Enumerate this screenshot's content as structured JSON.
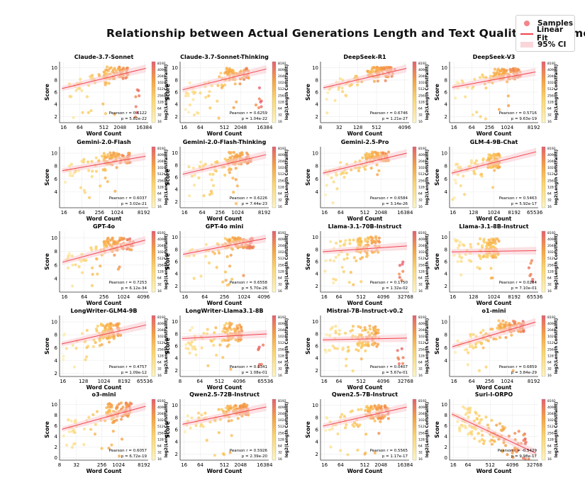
{
  "title": "Relationship between Actual Generations Length and Text Quality Assessment",
  "legend": {
    "samples": "Samples",
    "fit": "Linear Fit",
    "ci": "95% CI"
  },
  "colors": {
    "low": "#fce99a",
    "mid": "#f7a341",
    "high": "#e8606e",
    "fit": "#f0424e",
    "ci": "#f9cbd0"
  },
  "chart_data": [
    {
      "type": "scatter",
      "title": "Claude-3.7-Sonnet",
      "xlabel": "Word Count",
      "ylabel": "Score",
      "xticks": [
        "16",
        "64",
        "512",
        "2048",
        "16384"
      ],
      "xlog": [
        3.5,
        14.5
      ],
      "ylim": [
        1,
        11
      ],
      "yticks": [
        "2",
        "4",
        "6",
        "8",
        "10"
      ],
      "fit": [
        6.5,
        10
      ],
      "pearson": "Pearson r = 0.6122",
      "pval": "p = 5.82e-22",
      "colorbar": {
        "label": "log2(Length Constraint)",
        "ticks": [
          "8192",
          "4096",
          "2048",
          "1024",
          "512",
          "256",
          "128",
          "64",
          "32",
          "16"
        ]
      },
      "cluster": {
        "cx": 10.5,
        "cy": 9.2,
        "spread": 3,
        "scatter": 1.0,
        "tail": true
      }
    },
    {
      "type": "scatter",
      "title": "Claude-3.7-Sonnet-Thinking",
      "xlabel": "Word Count",
      "ylabel": "Score",
      "xticks": [
        "16",
        "64",
        "512",
        "2048",
        "16384"
      ],
      "xlog": [
        3.5,
        14.5
      ],
      "ylim": [
        1,
        11
      ],
      "yticks": [
        "2",
        "4",
        "6",
        "8",
        "10"
      ],
      "fit": [
        6.3,
        9.9
      ],
      "pearson": "Pearson r = 0.6259",
      "pval": "p = 1.04e-22",
      "colorbar": {
        "label": "log2(Length Constraint)",
        "ticks": [
          "8192",
          "4096",
          "2048",
          "1024",
          "512",
          "256",
          "128",
          "64",
          "32",
          "16"
        ]
      },
      "cluster": {
        "cx": 10.5,
        "cy": 9.0,
        "spread": 3,
        "scatter": 1.0,
        "tail": true
      }
    },
    {
      "type": "scatter",
      "title": "DeepSeek-R1",
      "xlabel": "Word Count",
      "ylabel": "Score",
      "xticks": [
        "8",
        "32",
        "128",
        "512",
        "4096"
      ],
      "xlog": [
        3,
        12.5
      ],
      "ylim": [
        1,
        11
      ],
      "yticks": [
        "2",
        "4",
        "6",
        "8",
        "10"
      ],
      "fit": [
        6.6,
        10
      ],
      "pearson": "Pearson r = 0.6746",
      "pval": "p = 1.21e-27",
      "colorbar": {
        "label": "log2(Length Constraint)",
        "ticks": [
          "8192",
          "4096",
          "2048",
          "1024",
          "512",
          "256",
          "128",
          "64",
          "32",
          "16"
        ]
      },
      "cluster": {
        "cx": 9.5,
        "cy": 9.3,
        "spread": 3,
        "scatter": 0.8,
        "tail": false
      }
    },
    {
      "type": "scatter",
      "title": "DeepSeek-V3",
      "xlabel": "Word Count",
      "ylabel": "Score",
      "xticks": [
        "16",
        "64",
        "256",
        "1024",
        "8192"
      ],
      "xlog": [
        3.5,
        13.5
      ],
      "ylim": [
        1,
        11
      ],
      "yticks": [
        "2",
        "4",
        "6",
        "8",
        "10"
      ],
      "fit": [
        6.7,
        9.4
      ],
      "pearson": "Pearson r = 0.5716",
      "pval": "p = 9.63e-19",
      "colorbar": {
        "label": "log2(Length Constraint)",
        "ticks": [
          "8192",
          "4096",
          "2048",
          "1024",
          "512",
          "256",
          "128",
          "64",
          "32",
          "16"
        ]
      },
      "cluster": {
        "cx": 10,
        "cy": 9.0,
        "spread": 3,
        "scatter": 0.9,
        "tail": false
      }
    },
    {
      "type": "scatter",
      "title": "Gemini-2.0-Flash",
      "xlabel": "Word Count",
      "ylabel": "Score",
      "xticks": [
        "16",
        "64",
        "256",
        "1024",
        "8192"
      ],
      "xlog": [
        3.5,
        13.5
      ],
      "ylim": [
        1.5,
        11
      ],
      "yticks": [
        "4",
        "6",
        "8",
        "10"
      ],
      "fit": [
        7.2,
        9.6
      ],
      "pearson": "Pearson r = 0.6037",
      "pval": "p = 3.02e-21",
      "colorbar": {
        "label": "log2(Length Constraint)",
        "ticks": [
          "8192",
          "4096",
          "2048",
          "1024",
          "512",
          "256",
          "128",
          "64",
          "32",
          "16"
        ]
      },
      "cluster": {
        "cx": 10,
        "cy": 9.2,
        "spread": 3,
        "scatter": 0.9,
        "tail": false
      }
    },
    {
      "type": "scatter",
      "title": "Gemini-2.0-Flash-Thinking",
      "xlabel": "Word Count",
      "ylabel": "Score",
      "xticks": [
        "16",
        "64",
        "256",
        "1024",
        "8192"
      ],
      "xlog": [
        3.5,
        13.5
      ],
      "ylim": [
        1,
        11
      ],
      "yticks": [
        "2",
        "4",
        "6",
        "8",
        "10"
      ],
      "fit": [
        6.4,
        9.8
      ],
      "pearson": "Pearson r = 0.6226",
      "pval": "p = 7.44e-23",
      "colorbar": {
        "label": "log2(Length Constraint)",
        "ticks": [
          "8192",
          "4096",
          "2048",
          "1024",
          "512",
          "256",
          "128",
          "64",
          "32",
          "16"
        ]
      },
      "cluster": {
        "cx": 10,
        "cy": 9.1,
        "spread": 3,
        "scatter": 1.0,
        "tail": false
      }
    },
    {
      "type": "scatter",
      "title": "Gemini-2.5-Pro",
      "xlabel": "Word Count",
      "ylabel": "Score",
      "xticks": [
        "16",
        "64",
        "512",
        "2048",
        "16384"
      ],
      "xlog": [
        3.5,
        14.5
      ],
      "ylim": [
        1.5,
        11
      ],
      "yticks": [
        "4",
        "6",
        "8",
        "10"
      ],
      "fit": [
        6.8,
        10.1
      ],
      "pearson": "Pearson r = 0.6584",
      "pval": "p = 3.14e-26",
      "colorbar": {
        "label": "log2(Length Constraint)",
        "ticks": [
          "8192",
          "4096",
          "2048",
          "1024",
          "512",
          "256",
          "128",
          "64",
          "32",
          "16"
        ]
      },
      "cluster": {
        "cx": 10.5,
        "cy": 9.4,
        "spread": 3,
        "scatter": 0.8,
        "tail": false
      }
    },
    {
      "type": "scatter",
      "title": "GLM-4-9B-Chat",
      "xlabel": "Word Count",
      "ylabel": "Score",
      "xticks": [
        "16",
        "128",
        "1024",
        "8192",
        "65536"
      ],
      "xlog": [
        3.5,
        16.5
      ],
      "ylim": [
        1.5,
        11
      ],
      "yticks": [
        "4",
        "6",
        "8",
        "10"
      ],
      "fit": [
        6.8,
        10.3
      ],
      "pearson": "Pearson r = 0.5463",
      "pval": "p = 5.92e-17",
      "colorbar": {
        "label": "log2(Length Constraint)",
        "ticks": [
          "8192",
          "4096",
          "2048",
          "1024",
          "512",
          "256",
          "128",
          "64",
          "32",
          "16"
        ]
      },
      "cluster": {
        "cx": 10,
        "cy": 8.8,
        "spread": 1.8,
        "scatter": 1.1,
        "tail": false
      }
    },
    {
      "type": "scatter",
      "title": "GPT-4o",
      "xlabel": "Word Count",
      "ylabel": "Score",
      "xticks": [
        "16",
        "64",
        "256",
        "1024",
        "4096"
      ],
      "xlog": [
        3.5,
        12.5
      ],
      "ylim": [
        2,
        11
      ],
      "yticks": [
        "4",
        "6",
        "8",
        "10"
      ],
      "fit": [
        6.3,
        9.8
      ],
      "pearson": "Pearson r = 0.7253",
      "pval": "p = 6.12e-34",
      "colorbar": {
        "label": "log2(Length Constraint)",
        "ticks": [
          "8192",
          "4096",
          "2048",
          "1024",
          "512",
          "256",
          "128",
          "64",
          "32",
          "16"
        ]
      },
      "cluster": {
        "cx": 9.5,
        "cy": 9.1,
        "spread": 3,
        "scatter": 0.9,
        "tail": false
      }
    },
    {
      "type": "scatter",
      "title": "GPT-4o mini",
      "xlabel": "Word Count",
      "ylabel": "Score",
      "xticks": [
        "16",
        "64",
        "256",
        "1024",
        "4096"
      ],
      "xlog": [
        3.5,
        12.5
      ],
      "ylim": [
        1,
        11
      ],
      "yticks": [
        "2",
        "4",
        "6",
        "8",
        "10"
      ],
      "fit": [
        7.1,
        9.9
      ],
      "pearson": "Pearson r = 0.6558",
      "pval": "p = 5.70e-26",
      "colorbar": {
        "label": "log2(Length Constraint)",
        "ticks": [
          "8192",
          "4096",
          "2048",
          "1024",
          "512",
          "256",
          "128",
          "64",
          "32",
          "16"
        ]
      },
      "cluster": {
        "cx": 9.5,
        "cy": 9.1,
        "spread": 3,
        "scatter": 0.9,
        "tail": false
      }
    },
    {
      "type": "scatter",
      "title": "Llama-3.1-70B-Instruct",
      "xlabel": "Word Count",
      "ylabel": "Score",
      "xticks": [
        "16",
        "64",
        "512",
        "4096",
        "32768"
      ],
      "xlog": [
        3.5,
        15.5
      ],
      "ylim": [
        1,
        11
      ],
      "yticks": [
        "2",
        "4",
        "6",
        "8",
        "10"
      ],
      "fit": [
        7.6,
        8.6
      ],
      "pearson": "Pearson r = 0.1750",
      "pval": "p = 1.32e-02",
      "colorbar": {
        "label": "log2(Length Constraint)",
        "ticks": [
          "8192",
          "4096",
          "2048",
          "1024",
          "512",
          "256",
          "128",
          "64",
          "32",
          "16"
        ]
      },
      "cluster": {
        "cx": 10,
        "cy": 8.8,
        "spread": 3,
        "scatter": 1.3,
        "tail": true
      }
    },
    {
      "type": "scatter",
      "title": "Llama-3.1-8B-Instruct",
      "xlabel": "Word Count",
      "ylabel": "Score",
      "xticks": [
        "16",
        "128",
        "1024",
        "8192",
        "65536"
      ],
      "xlog": [
        3.5,
        16.5
      ],
      "ylim": [
        1,
        11
      ],
      "yticks": [
        "2",
        "4",
        "6",
        "8",
        "10"
      ],
      "fit": [
        7.6,
        7.8
      ],
      "pearson": "Pearson r = 0.0284",
      "pval": "p = 7.10e-01",
      "colorbar": {
        "label": "log2(Length Constraint)",
        "ticks": [
          "8192",
          "4096",
          "2048",
          "1024",
          "512",
          "256",
          "128",
          "64",
          "32",
          "16"
        ]
      },
      "cluster": {
        "cx": 9.5,
        "cy": 8.3,
        "spread": 2.5,
        "scatter": 1.6,
        "tail": true
      }
    },
    {
      "type": "scatter",
      "title": "LongWriter-GLM4-9B",
      "xlabel": "Word Count",
      "ylabel": "Score",
      "xticks": [
        "16",
        "128",
        "1024",
        "8192",
        "65536"
      ],
      "xlog": [
        3.5,
        16.5
      ],
      "ylim": [
        1.5,
        11
      ],
      "yticks": [
        "2",
        "4",
        "6",
        "8",
        "10"
      ],
      "fit": [
        6.5,
        9.6
      ],
      "pearson": "Pearson r = 0.4757",
      "pval": "p = 1.09e-12",
      "colorbar": {
        "label": "log2(Length Constraint)",
        "ticks": [
          "8192",
          "4096",
          "2048",
          "1024",
          "512",
          "256",
          "128",
          "64",
          "32",
          "16"
        ]
      },
      "cluster": {
        "cx": 11,
        "cy": 8.6,
        "spread": 3,
        "scatter": 1.2,
        "tail": false
      }
    },
    {
      "type": "scatter",
      "title": "LongWriter-Llama3.1-8B",
      "xlabel": "Word Count",
      "ylabel": "Score",
      "xticks": [
        "8",
        "64",
        "512",
        "4096",
        "65536"
      ],
      "xlog": [
        3,
        16.5
      ],
      "ylim": [
        1,
        11
      ],
      "yticks": [
        "2",
        "4",
        "6",
        "8",
        "10"
      ],
      "fit": [
        7.2,
        8.0
      ],
      "pearson": "Pearson r = 0.1341",
      "pval": "p = 1.08e-01",
      "colorbar": {
        "label": "log2(Length Constraint)",
        "ticks": [
          "8192",
          "4096",
          "2048",
          "1024",
          "512",
          "256",
          "128",
          "64",
          "32",
          "16"
        ]
      },
      "cluster": {
        "cx": 11,
        "cy": 8.3,
        "spread": 3,
        "scatter": 1.5,
        "tail": true
      }
    },
    {
      "type": "scatter",
      "title": "Mistral-7B-Instruct-v0.2",
      "xlabel": "Word Count",
      "ylabel": "Score",
      "xticks": [
        "16",
        "64",
        "512",
        "4096",
        "32768"
      ],
      "xlog": [
        3.5,
        15.5
      ],
      "ylim": [
        1,
        11
      ],
      "yticks": [
        "2",
        "4",
        "6",
        "8",
        "10"
      ],
      "fit": [
        7.0,
        7.3
      ],
      "pearson": "Pearson r = 0.0407",
      "pval": "p = 5.67e-01",
      "colorbar": {
        "label": "log2(Length Constraint)",
        "ticks": [
          "8192",
          "4096",
          "2048",
          "1024",
          "512",
          "256",
          "128",
          "64",
          "32",
          "16"
        ]
      },
      "cluster": {
        "cx": 10,
        "cy": 7.6,
        "spread": 3,
        "scatter": 1.7,
        "tail": true
      }
    },
    {
      "type": "scatter",
      "title": "o1-mini",
      "xlabel": "Word Count",
      "ylabel": "Score",
      "xticks": [
        "16",
        "64",
        "256",
        "1024",
        "8192"
      ],
      "xlog": [
        3.5,
        13.5
      ],
      "ylim": [
        1.5,
        11
      ],
      "yticks": [
        "4",
        "6",
        "8",
        "10"
      ],
      "fit": [
        6.0,
        10.1
      ],
      "pearson": "Pearson r = 0.6859",
      "pval": "p = 3.84e-29",
      "colorbar": {
        "label": "log2(Length Constraint)",
        "ticks": [
          "8192",
          "4096",
          "2048",
          "1024",
          "512",
          "256",
          "128",
          "64",
          "32",
          "16"
        ]
      },
      "cluster": {
        "cx": 10.5,
        "cy": 9.3,
        "spread": 3,
        "scatter": 0.9,
        "tail": false
      }
    },
    {
      "type": "scatter",
      "title": "o3-mini",
      "xlabel": "Word Count",
      "ylabel": "Score",
      "xticks": [
        "8",
        "32",
        "256",
        "1024",
        "8192"
      ],
      "xlog": [
        3,
        13.5
      ],
      "ylim": [
        -0.5,
        11
      ],
      "yticks": [
        "0",
        "2",
        "4",
        "6",
        "8",
        "10"
      ],
      "fit": [
        5.2,
        9.8
      ],
      "pearson": "Pearson r = 0.6057",
      "pval": "p = 6.72e-19",
      "colorbar": {
        "label": "log2(Length Constraint)",
        "ticks": [
          "8192",
          "4096",
          "2048",
          "1024",
          "512",
          "256",
          "128",
          "64",
          "32",
          "16"
        ]
      },
      "cluster": {
        "cx": 10,
        "cy": 9.0,
        "spread": 3,
        "scatter": 1.3,
        "tail": false
      }
    },
    {
      "type": "scatter",
      "title": "Qwen2.5-72B-Instruct",
      "xlabel": "Word Count",
      "ylabel": "Score",
      "xticks": [
        "16",
        "64",
        "512",
        "2048",
        "16384"
      ],
      "xlog": [
        3.5,
        14.5
      ],
      "ylim": [
        1,
        11
      ],
      "yticks": [
        "2",
        "4",
        "6",
        "8",
        "10"
      ],
      "fit": [
        6.8,
        9.8
      ],
      "pearson": "Pearson r = 0.5926",
      "pval": "p = 2.39e-20",
      "colorbar": {
        "label": "log2(Length Constraint)",
        "ticks": [
          "8192",
          "4096",
          "2048",
          "1024",
          "512",
          "256",
          "128",
          "64",
          "32",
          "16"
        ]
      },
      "cluster": {
        "cx": 10.5,
        "cy": 9.2,
        "spread": 3,
        "scatter": 1.0,
        "tail": false
      }
    },
    {
      "type": "scatter",
      "title": "Qwen2.5-7B-Instruct",
      "xlabel": "Word Count",
      "ylabel": "Score",
      "xticks": [
        "16",
        "64",
        "512",
        "2048",
        "16384"
      ],
      "xlog": [
        3.5,
        14.5
      ],
      "ylim": [
        1,
        11
      ],
      "yticks": [
        "2",
        "4",
        "6",
        "8",
        "10"
      ],
      "fit": [
        6.5,
        9.8
      ],
      "pearson": "Pearson r = 0.5565",
      "pval": "p = 1.17e-17",
      "colorbar": {
        "label": "log2(Length Constraint)",
        "ticks": [
          "8192",
          "4096",
          "2048",
          "1024",
          "512",
          "256",
          "128",
          "64",
          "32",
          "16"
        ]
      },
      "cluster": {
        "cx": 10.5,
        "cy": 8.9,
        "spread": 3,
        "scatter": 1.1,
        "tail": false
      }
    },
    {
      "type": "scatter",
      "title": "Suri-I-ORPO",
      "xlabel": "Word Count",
      "ylabel": "Score",
      "xticks": [
        "16",
        "64",
        "512",
        "4096",
        "32768"
      ],
      "xlog": [
        3.5,
        15.5
      ],
      "ylim": [
        -0.5,
        11
      ],
      "yticks": [
        "0",
        "2",
        "4",
        "6",
        "8",
        "10"
      ],
      "fit": [
        8.4,
        0.6
      ],
      "pearson": "Pearson r = -0.5429",
      "pval": "p = 9.98e-17",
      "colorbar": {
        "label": "log2(Length Constraint)",
        "ticks": [
          "8192",
          "4096",
          "2048",
          "1024",
          "512",
          "256",
          "128",
          "64",
          "32",
          "16"
        ]
      },
      "cluster": {
        "cx": 10,
        "cy": 4.5,
        "spread": 3,
        "scatter": 2.0,
        "tail": false,
        "negative": true
      }
    }
  ]
}
